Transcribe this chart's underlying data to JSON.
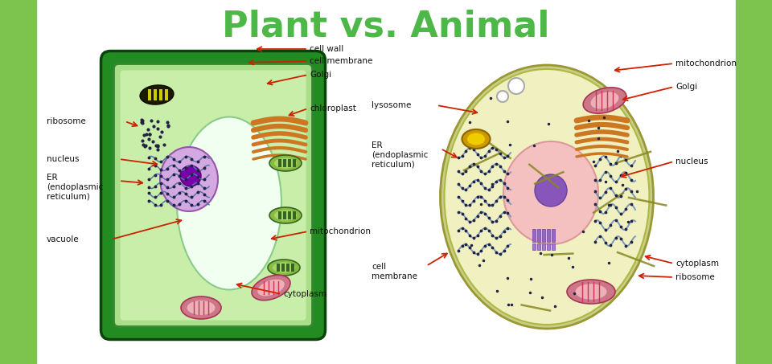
{
  "title": "Plant vs. Animal",
  "title_color": "#4db848",
  "title_fontsize": 32,
  "title_fontweight": "bold",
  "bg_color": "#ffffff",
  "side_bg_color": "#7dc44e",
  "label_color": "#111111",
  "arrow_color": "#cc2200",
  "plant_cell": {
    "cell_wall_color": "#228B22",
    "cell_body_color": "#aade88",
    "cell_inner_color": "#c8eeaa",
    "vacuole_color": "#e8ffe8",
    "nucleus_body_color": "#d4a8e0",
    "nucleus_border_color": "#9955aa",
    "nucleolus_color": "#7700aa",
    "er_color": "#5577aa",
    "golgi_color": "#cc7722",
    "chloro_outer_color": "#558833",
    "chloro_inner_color": "#99cc44",
    "chloro_stripe_color": "#336622",
    "mito_outer_color": "#cc7788",
    "mito_inner_color": "#eeb0b8",
    "plastid_color": "#111100",
    "plastid_stripe_color": "#ddcc00",
    "ribosome_color": "#222244",
    "labels": {
      "cell_wall": "cell wall",
      "cell_membrane": "cell membrane",
      "golgi": "Golgi",
      "chloroplast": "chloroplast",
      "ribosome": "ribosome",
      "nucleus": "nucleus",
      "er": "ER\n(endoplasmic\nreticulum)",
      "vacuole": "vacuole",
      "mitochondrion": "mitochondrion",
      "cytoplasm": "cytoplasm"
    }
  },
  "animal_cell": {
    "cell_outer_color": "#cccc88",
    "cell_body_color": "#f0f0c0",
    "cell_border_color": "#aaaa55",
    "nucleus_color": "#f5c0c0",
    "nucleus_border_color": "#dd9999",
    "nucleolus_color": "#8855bb",
    "er_color": "#7799bb",
    "golgi_color": "#cc7722",
    "mito_outer_color": "#cc7788",
    "mito_inner_color": "#eeb0b8",
    "lysosome_outer_color": "#cc9900",
    "lysosome_inner_color": "#eecc00",
    "ribosome_color": "#222244",
    "labels": {
      "mitochondrion": "mitochondrion",
      "golgi": "Golgi",
      "nucleus": "nucleus",
      "er": "ER\n(endoplasmic\nreticulum)",
      "lysosome": "lysosome",
      "cell_membrane": "cell\nmembrane",
      "cytoplasm": "cytoplasm",
      "ribosome": "ribosome"
    }
  }
}
